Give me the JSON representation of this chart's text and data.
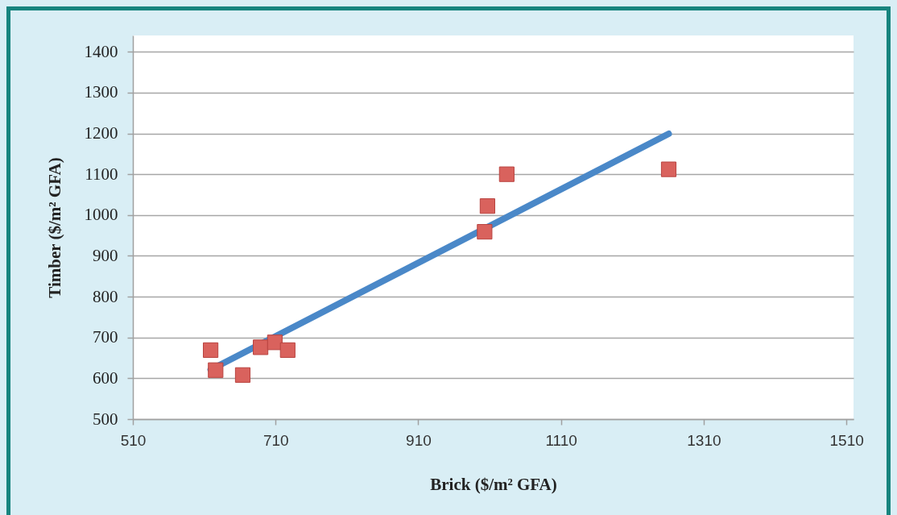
{
  "chart_data": {
    "type": "scatter",
    "xlabel": "Brick ($/m² GFA)",
    "ylabel": "Timber ($/m² GFA)",
    "xlim": [
      510,
      1520
    ],
    "ylim": [
      500,
      1440
    ],
    "xticks": [
      510,
      710,
      910,
      1110,
      1310,
      1510
    ],
    "yticks": [
      500,
      600,
      700,
      800,
      900,
      1000,
      1100,
      1200,
      1300,
      1400
    ],
    "grid": "y",
    "series": [
      {
        "type": "line",
        "color": "#4a88c8",
        "x": [
          619,
          1261
        ],
        "values": [
          621,
          1199
        ]
      },
      {
        "color": "#d9625d",
        "marker": "square",
        "x": [
          619,
          626,
          664,
          689,
          709,
          727,
          1003,
          1007,
          1034,
          1261
        ],
        "values": [
          669,
          620,
          608,
          676,
          688,
          669,
          959,
          1022,
          1100,
          1112
        ]
      }
    ]
  }
}
